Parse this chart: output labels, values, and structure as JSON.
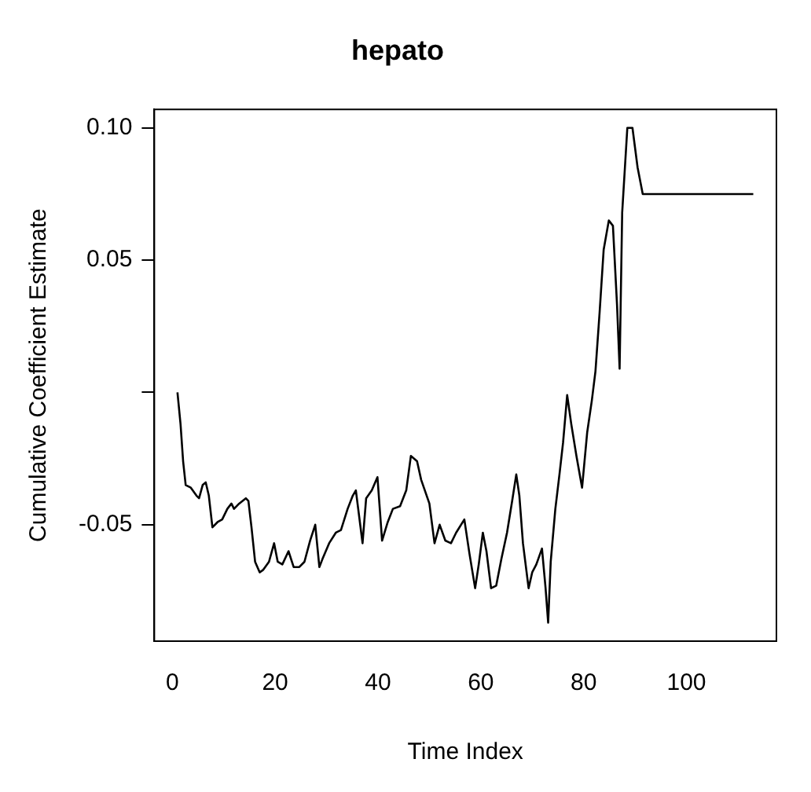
{
  "chart_data": {
    "type": "line",
    "title": "hepato",
    "xlabel": "Time Index",
    "ylabel": "Cumulative Coefficient Estimate",
    "series": [
      {
        "color": "#000000",
        "x": [
          1,
          1.6,
          2.1,
          2.6,
          3.6,
          4.7,
          5.2,
          5.9,
          6.5,
          7.1,
          7.8,
          8.8,
          9.7,
          10.7,
          11.5,
          12,
          13,
          14.3,
          14.8,
          15.4,
          16.1,
          17,
          17.7,
          18.8,
          19.8,
          20.5,
          21.4,
          22.6,
          23.6,
          24.7,
          25.7,
          26.8,
          27.8,
          28.6,
          29.2,
          30.5,
          31.8,
          32.8,
          34.1,
          35.1,
          35.7,
          37,
          37.7,
          38.8,
          39.9,
          40.8,
          41.9,
          42.9,
          44.3,
          45.5,
          46.4,
          47.6,
          48.4,
          50,
          51,
          52,
          53.1,
          54.2,
          55.2,
          56.8,
          57.8,
          58.9,
          59.6,
          60.4,
          61.1,
          62,
          63,
          64,
          65.1,
          66.1,
          66.9,
          67.5,
          68.2,
          69.3,
          70,
          70.8,
          71.9,
          72.6,
          73.1,
          73.6,
          74.5,
          75.3,
          76,
          76.8,
          77.6,
          78.6,
          79.7,
          80.7,
          81.6,
          82.3,
          83.1,
          83.9,
          84.9,
          85.7,
          86.5,
          87,
          87.5,
          88.5,
          89.5,
          90.5,
          91.5,
          113
        ],
        "values": [
          0,
          -0.012,
          -0.026,
          -0.035,
          -0.036,
          -0.039,
          -0.04,
          -0.035,
          -0.034,
          -0.039,
          -0.051,
          -0.049,
          -0.048,
          -0.044,
          -0.042,
          -0.044,
          -0.042,
          -0.04,
          -0.041,
          -0.051,
          -0.064,
          -0.068,
          -0.067,
          -0.064,
          -0.057,
          -0.064,
          -0.065,
          -0.06,
          -0.066,
          -0.066,
          -0.064,
          -0.056,
          -0.05,
          -0.066,
          -0.063,
          -0.057,
          -0.053,
          -0.052,
          -0.044,
          -0.039,
          -0.037,
          -0.057,
          -0.04,
          -0.037,
          -0.032,
          -0.056,
          -0.049,
          -0.044,
          -0.043,
          -0.037,
          -0.024,
          -0.026,
          -0.033,
          -0.042,
          -0.057,
          -0.05,
          -0.056,
          -0.057,
          -0.053,
          -0.048,
          -0.061,
          -0.074,
          -0.065,
          -0.053,
          -0.06,
          -0.074,
          -0.073,
          -0.063,
          -0.053,
          -0.041,
          -0.031,
          -0.039,
          -0.057,
          -0.074,
          -0.068,
          -0.065,
          -0.059,
          -0.074,
          -0.087,
          -0.064,
          -0.044,
          -0.031,
          -0.019,
          -0.001,
          -0.012,
          -0.024,
          -0.036,
          -0.015,
          -0.003,
          0.008,
          0.03,
          0.054,
          0.065,
          0.063,
          0.033,
          0.009,
          0.068,
          0.1,
          0.1,
          0.085,
          0.075,
          0.075
        ]
      }
    ],
    "xlim": [
      -3.5,
      117.5
    ],
    "xticks": [
      0,
      20,
      40,
      60,
      80,
      100
    ],
    "ylim": [
      -0.094,
      0.107
    ],
    "yticks": [
      {
        "value": -0.05,
        "label": "-0.05"
      },
      {
        "value": 0,
        "label": null
      },
      {
        "value": 0.05,
        "label": "0.05"
      },
      {
        "value": 0.1,
        "label": "0.10"
      }
    ],
    "grid": false,
    "legend": false,
    "marker": "none",
    "line_style": "solid"
  }
}
